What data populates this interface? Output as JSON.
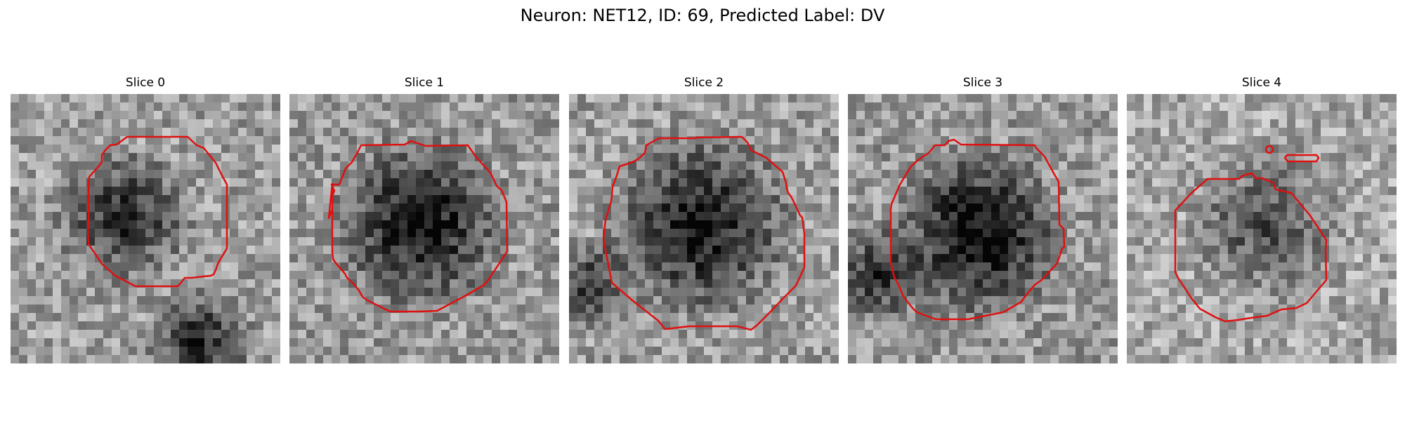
{
  "figure": {
    "title": "Neuron: NET12, ID: 69, Predicted Label: DV",
    "contour_color": "#e01010"
  },
  "panels": [
    {
      "title": "Slice 0"
    },
    {
      "title": "Slice 1"
    },
    {
      "title": "Slice 2"
    },
    {
      "title": "Slice 3"
    },
    {
      "title": "Slice 4"
    }
  ]
}
